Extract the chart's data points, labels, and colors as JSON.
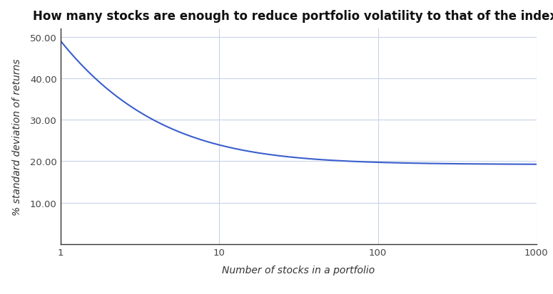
{
  "title": "How many stocks are enough to reduce portfolio volatility to that of the index?",
  "xlabel": "Number of stocks in a portfolio",
  "ylabel": "% standard deviation of returns",
  "line_color": "#3a5fcd",
  "background_color": "#ffffff",
  "plot_bg_color": "#ffffff",
  "grid_color": "#c8d4e8",
  "ylim": [
    0,
    52
  ],
  "xlim_log": [
    1,
    1000
  ],
  "sigma_market": 19.2,
  "sigma_single": 49.0,
  "yticks": [
    10.0,
    20.0,
    30.0,
    40.0,
    50.0
  ],
  "xticks": [
    1,
    10,
    100,
    1000
  ],
  "title_fontsize": 12,
  "label_fontsize": 10,
  "tick_fontsize": 9.5
}
